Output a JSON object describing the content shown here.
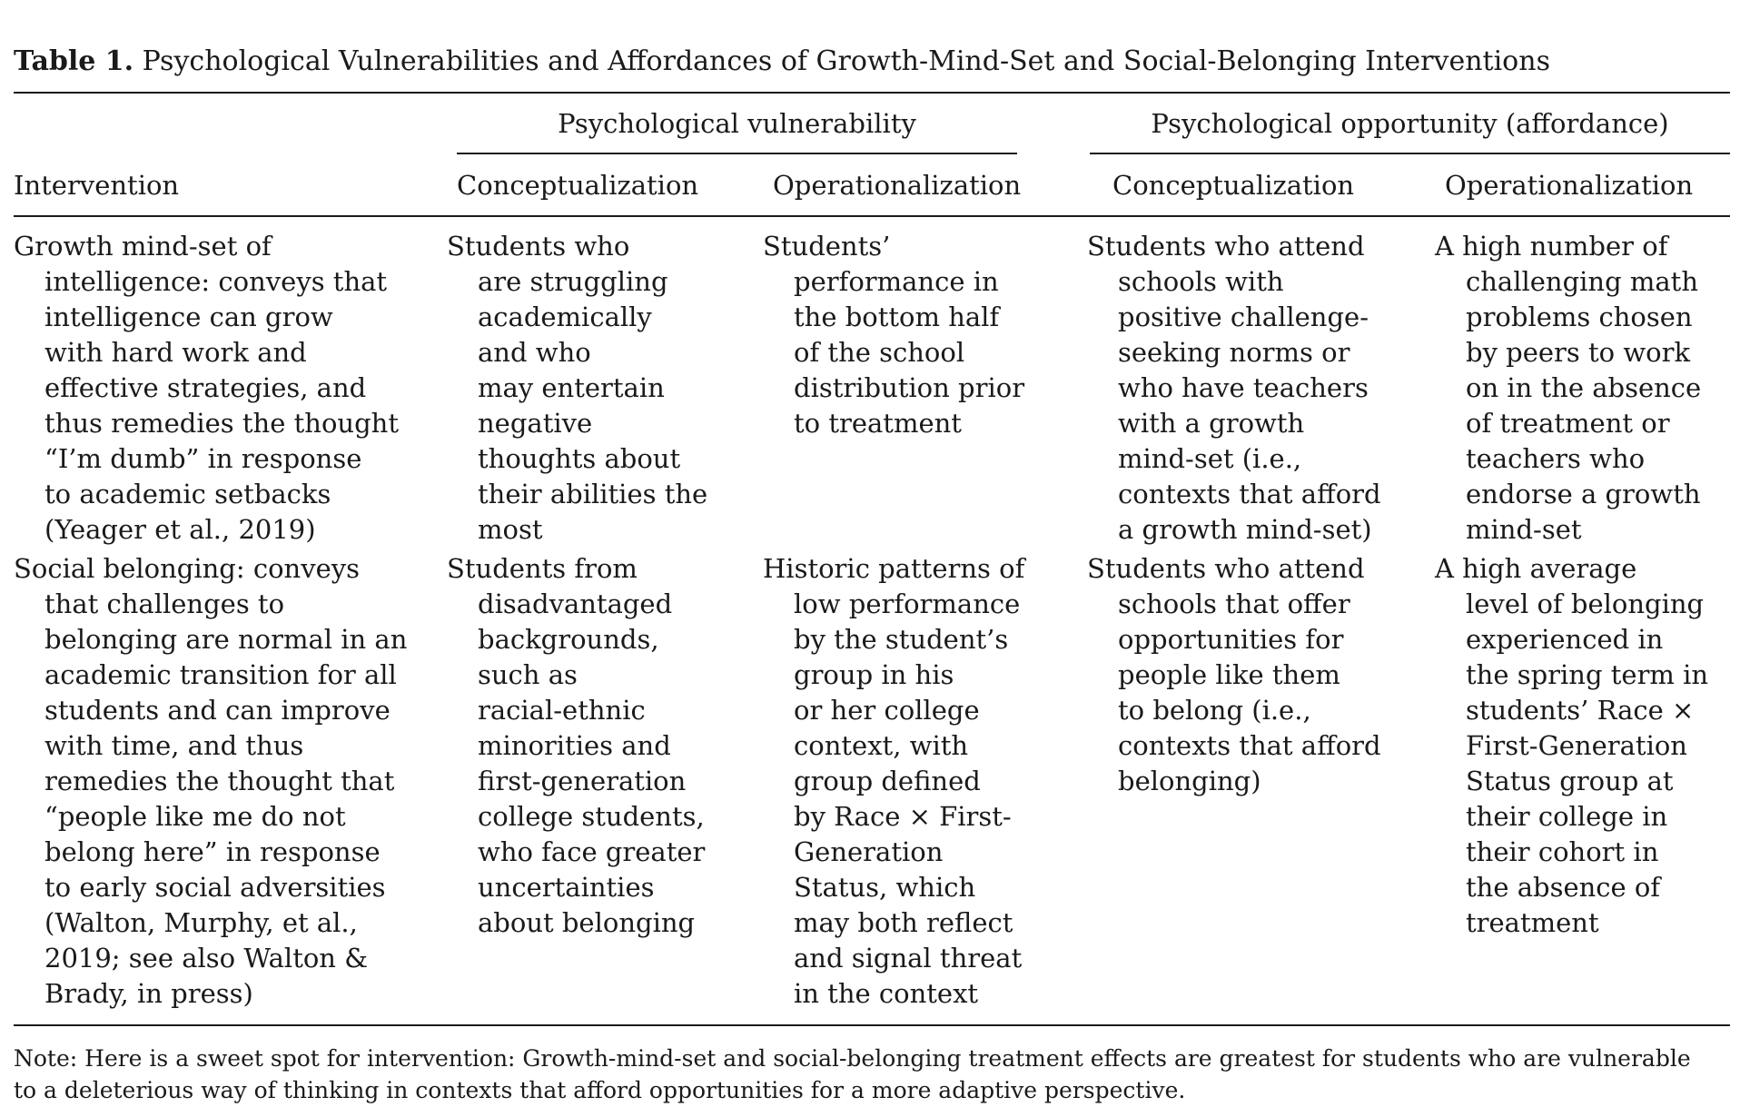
{
  "caption": {
    "label": "Table 1.",
    "text": "Psychological Vulnerabilities and Affordances of Growth-Mind-Set and Social-Belonging Interventions"
  },
  "groups": {
    "vulnerability": "Psychological vulnerability",
    "opportunity": "Psychological opportunity (affordance)"
  },
  "columns": {
    "intervention": "Intervention",
    "vuln_concept": "Conceptualization",
    "vuln_oper": "Operationalization",
    "opp_concept": "Conceptualization",
    "opp_oper": "Operationalization"
  },
  "rows": [
    {
      "intervention": [
        "Growth mind-set of",
        "intelligence: conveys that",
        "intelligence can grow",
        "with hard work and",
        "effective strategies, and",
        "thus remedies the thought",
        "“I’m dumb” in response",
        "to academic setbacks",
        "(Yeager et al., 2019)"
      ],
      "vuln_concept": [
        "Students who",
        "are struggling",
        "academically",
        "and who",
        "may entertain",
        "negative",
        "thoughts about",
        "their abilities the",
        "most"
      ],
      "vuln_oper": [
        "Students’",
        "performance in",
        "the bottom half",
        "of the school",
        "distribution prior",
        "to treatment"
      ],
      "opp_concept": [
        "Students who attend",
        "schools with",
        "positive challenge-",
        "seeking norms or",
        "who have teachers",
        "with a growth",
        "mind-set (i.e.,",
        "contexts that afford",
        "a growth mind-set)"
      ],
      "opp_oper": [
        "A high number of",
        "challenging math",
        "problems chosen",
        "by peers to work",
        "on in the absence",
        "of treatment or",
        "teachers who",
        "endorse a growth",
        "mind-set"
      ]
    },
    {
      "intervention": [
        "Social belonging: conveys",
        "that challenges to",
        "belonging are normal in an",
        "academic transition for all",
        "students and can improve",
        "with time, and thus",
        "remedies the thought that",
        "“people like me do not",
        "belong here” in response",
        "to early social adversities",
        "(Walton, Murphy, et al.,",
        "2019; see also Walton &",
        "Brady, in press)"
      ],
      "vuln_concept": [
        "Students from",
        "disadvantaged",
        "backgrounds,",
        "such as",
        "racial-ethnic",
        "minorities and",
        "first-generation",
        "college students,",
        "who face greater",
        "uncertainties",
        "about belonging"
      ],
      "vuln_oper": [
        "Historic patterns of",
        "low performance",
        "by the student’s",
        "group in his",
        "or her college",
        "context, with",
        "group defined",
        "by Race × First-",
        "Generation",
        "Status, which",
        "may both reflect",
        "and signal threat",
        "in the context"
      ],
      "opp_concept": [
        "Students who attend",
        "schools that offer",
        "opportunities for",
        "people like them",
        "to belong (i.e.,",
        "contexts that afford",
        "belonging)"
      ],
      "opp_oper": [
        "A high average",
        "level of belonging",
        "experienced in",
        "the spring term in",
        "students’ Race ×",
        "First-Generation",
        "Status group at",
        "their college in",
        "their cohort in",
        "the absence of",
        "treatment"
      ]
    }
  ],
  "note": [
    "Note: Here is a sweet spot for intervention: Growth-mind-set and social-belonging treatment effects are greatest for students who are vulnerable",
    "to a deleterious way of thinking in contexts that afford opportunities for a more adaptive perspective."
  ]
}
